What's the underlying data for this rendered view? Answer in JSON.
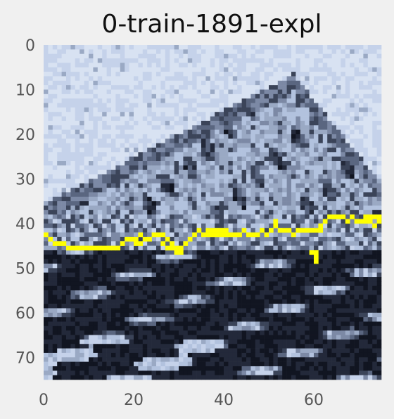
{
  "chart_data": {
    "type": "heatmap",
    "title": "0-train-1891-expl",
    "xlabel": "",
    "ylabel": "",
    "grid": false,
    "legend": "none",
    "image_size": [
      75,
      75
    ],
    "xlim": [
      0,
      74
    ],
    "ylim": [
      74,
      0
    ],
    "x_ticks": [
      "0",
      "20",
      "40",
      "60"
    ],
    "y_ticks": [
      "0",
      "10",
      "20",
      "30",
      "40",
      "50",
      "60",
      "70"
    ],
    "x_tick_values": [
      0,
      20,
      40,
      60
    ],
    "y_tick_values": [
      0,
      10,
      20,
      30,
      40,
      50,
      60,
      70
    ],
    "colormap": [
      "#111521",
      "#23293a",
      "#3b4459",
      "#5a6680",
      "#7c89a5",
      "#9aa9c4",
      "#b2c2de",
      "#c5d2ea",
      "#d8e2f2"
    ],
    "highlight_color": "#ffff00",
    "highlight_pixels": [
      [
        0,
        42
      ],
      [
        1,
        43
      ],
      [
        2,
        44
      ],
      [
        3,
        44
      ],
      [
        4,
        44
      ],
      [
        5,
        45
      ],
      [
        6,
        45
      ],
      [
        7,
        45
      ],
      [
        8,
        45
      ],
      [
        9,
        45
      ],
      [
        10,
        45
      ],
      [
        11,
        45
      ],
      [
        12,
        45
      ],
      [
        13,
        45
      ],
      [
        14,
        45
      ],
      [
        15,
        45
      ],
      [
        16,
        45
      ],
      [
        17,
        44
      ],
      [
        18,
        43
      ],
      [
        19,
        43
      ],
      [
        20,
        43
      ],
      [
        21,
        42
      ],
      [
        22,
        43
      ],
      [
        23,
        43
      ],
      [
        24,
        42
      ],
      [
        25,
        42
      ],
      [
        26,
        42
      ],
      [
        27,
        43
      ],
      [
        28,
        44
      ],
      [
        29,
        45
      ],
      [
        30,
        45
      ],
      [
        31,
        44
      ],
      [
        32,
        43
      ],
      [
        33,
        42
      ],
      [
        34,
        41
      ],
      [
        35,
        42
      ],
      [
        36,
        41
      ],
      [
        37,
        41
      ],
      [
        38,
        41
      ],
      [
        39,
        41
      ],
      [
        40,
        41
      ],
      [
        41,
        42
      ],
      [
        42,
        42
      ],
      [
        43,
        42
      ],
      [
        44,
        41
      ],
      [
        45,
        42
      ],
      [
        46,
        42
      ],
      [
        47,
        42
      ],
      [
        48,
        41
      ],
      [
        49,
        42
      ],
      [
        50,
        41
      ],
      [
        51,
        40
      ],
      [
        52,
        41
      ],
      [
        53,
        41
      ],
      [
        54,
        41
      ],
      [
        55,
        42
      ],
      [
        56,
        41
      ],
      [
        57,
        41
      ],
      [
        58,
        41
      ],
      [
        59,
        41
      ],
      [
        60,
        41
      ],
      [
        61,
        40
      ],
      [
        62,
        39
      ],
      [
        63,
        38
      ],
      [
        64,
        38
      ],
      [
        65,
        38
      ],
      [
        66,
        38
      ],
      [
        67,
        39
      ],
      [
        68,
        38
      ],
      [
        69,
        39
      ],
      [
        70,
        39
      ],
      [
        71,
        38
      ],
      [
        72,
        39
      ],
      [
        73,
        38
      ],
      [
        74,
        38
      ],
      [
        26,
        44
      ],
      [
        27,
        45
      ],
      [
        28,
        45
      ],
      [
        29,
        46
      ],
      [
        30,
        46
      ],
      [
        51,
        39
      ],
      [
        61,
        41
      ],
      [
        59,
        46
      ],
      [
        60,
        46
      ],
      [
        60,
        47
      ],
      [
        60,
        48
      ],
      [
        20,
        44
      ],
      [
        21,
        44
      ],
      [
        36,
        42
      ],
      [
        37,
        42
      ],
      [
        38,
        42
      ],
      [
        39,
        42
      ],
      [
        40,
        42
      ],
      [
        71,
        39
      ],
      [
        72,
        38
      ],
      [
        73,
        40
      ],
      [
        74,
        39
      ]
    ]
  }
}
